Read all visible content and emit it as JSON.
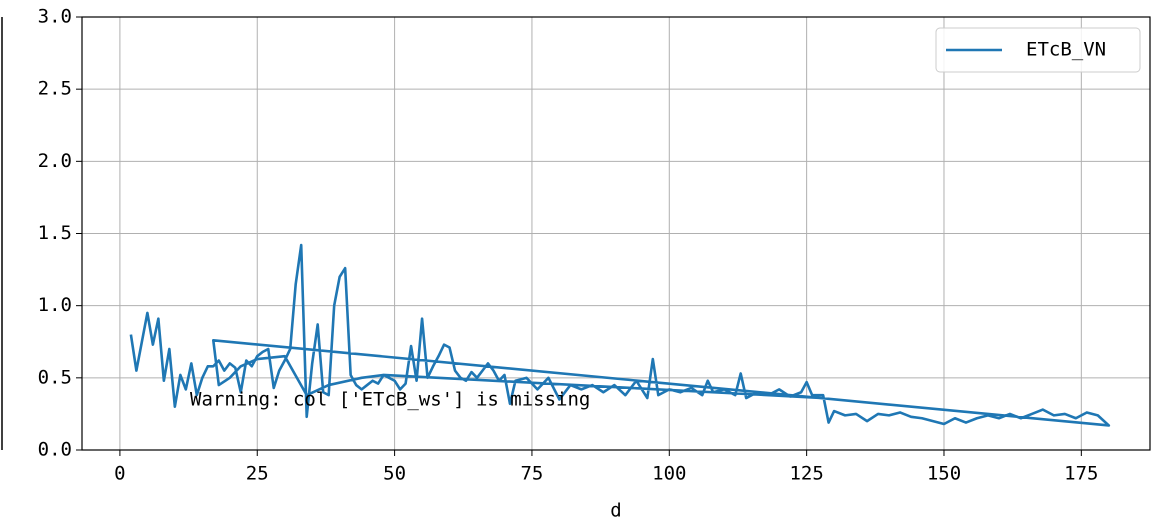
{
  "chart_data": {
    "type": "line",
    "xlabel": "d",
    "annotation": "Warning: col ['ETcB_ws'] is missing",
    "xlim": [
      -6.9,
      187.5
    ],
    "xticks": [
      0,
      25,
      50,
      75,
      100,
      125,
      150,
      175
    ],
    "ylim": [
      0,
      3
    ],
    "yticks": [
      {
        "value": 0,
        "label": "0.0"
      },
      {
        "value": 0.5,
        "label": "0.5"
      },
      {
        "value": 1,
        "label": "1.0"
      },
      {
        "value": 1.5,
        "label": "1.5"
      },
      {
        "value": 2,
        "label": "2.0"
      },
      {
        "value": 2.5,
        "label": "2.5"
      },
      {
        "value": 3,
        "label": "3.0"
      }
    ],
    "grid": true,
    "legend": "upper right",
    "x": [
      2,
      3,
      4,
      5,
      6,
      7,
      8,
      9,
      10,
      11,
      12,
      13,
      14,
      15,
      16,
      17,
      18,
      19,
      20,
      21,
      22,
      23,
      24,
      25,
      26,
      27,
      28,
      29,
      30,
      31,
      32,
      33,
      34,
      35,
      36,
      37,
      38,
      39,
      40,
      41,
      42,
      43,
      44,
      45,
      46,
      47,
      48,
      49,
      50,
      51,
      52,
      53,
      54,
      55,
      56,
      57,
      58,
      59,
      60,
      61,
      62,
      63,
      64,
      65,
      66,
      67,
      68,
      69,
      70,
      71,
      72,
      74,
      76,
      78,
      80,
      82,
      84,
      86,
      88,
      90,
      92,
      94,
      96,
      97,
      98,
      100,
      102,
      104,
      106,
      107,
      108,
      110,
      112,
      113,
      114,
      116,
      118,
      120,
      122,
      124,
      125,
      126,
      128,
      129,
      130,
      132,
      134,
      136,
      138,
      140,
      142,
      144,
      146,
      148,
      150,
      152,
      154,
      156,
      158,
      160,
      162,
      164,
      166,
      168,
      170,
      172,
      174,
      176,
      178,
      180,
      17,
      18,
      20,
      22,
      25,
      30,
      34,
      38,
      44,
      48,
      128
    ],
    "series": [
      {
        "name": "ETcB_VN",
        "color": "#1f77b4",
        "values": [
          0.8,
          0.55,
          0.75,
          0.95,
          0.73,
          0.91,
          0.48,
          0.7,
          0.3,
          0.52,
          0.42,
          0.6,
          0.38,
          0.5,
          0.58,
          0.58,
          0.62,
          0.55,
          0.6,
          0.57,
          0.4,
          0.62,
          0.58,
          0.65,
          0.68,
          0.7,
          0.43,
          0.55,
          0.62,
          0.7,
          1.15,
          1.42,
          0.23,
          0.6,
          0.87,
          0.4,
          0.38,
          1.0,
          1.2,
          1.26,
          0.52,
          0.45,
          0.42,
          0.45,
          0.48,
          0.46,
          0.52,
          0.5,
          0.48,
          0.42,
          0.46,
          0.72,
          0.48,
          0.91,
          0.5,
          0.58,
          0.65,
          0.73,
          0.71,
          0.55,
          0.5,
          0.48,
          0.54,
          0.5,
          0.55,
          0.6,
          0.55,
          0.48,
          0.52,
          0.32,
          0.48,
          0.5,
          0.42,
          0.5,
          0.35,
          0.45,
          0.42,
          0.45,
          0.4,
          0.45,
          0.38,
          0.48,
          0.36,
          0.63,
          0.38,
          0.42,
          0.4,
          0.43,
          0.38,
          0.48,
          0.4,
          0.42,
          0.38,
          0.53,
          0.36,
          0.4,
          0.38,
          0.42,
          0.37,
          0.4,
          0.47,
          0.38,
          0.38,
          0.19,
          0.27,
          0.24,
          0.25,
          0.2,
          0.25,
          0.24,
          0.26,
          0.23,
          0.22,
          0.2,
          0.18,
          0.22,
          0.19,
          0.22,
          0.24,
          0.22,
          0.25,
          0.22,
          0.25,
          0.28,
          0.24,
          0.25,
          0.22,
          0.26,
          0.24,
          0.17,
          0.76,
          0.45,
          0.5,
          0.58,
          0.63,
          0.65,
          0.38,
          0.45,
          0.5,
          0.52,
          0.36
        ]
      }
    ]
  }
}
